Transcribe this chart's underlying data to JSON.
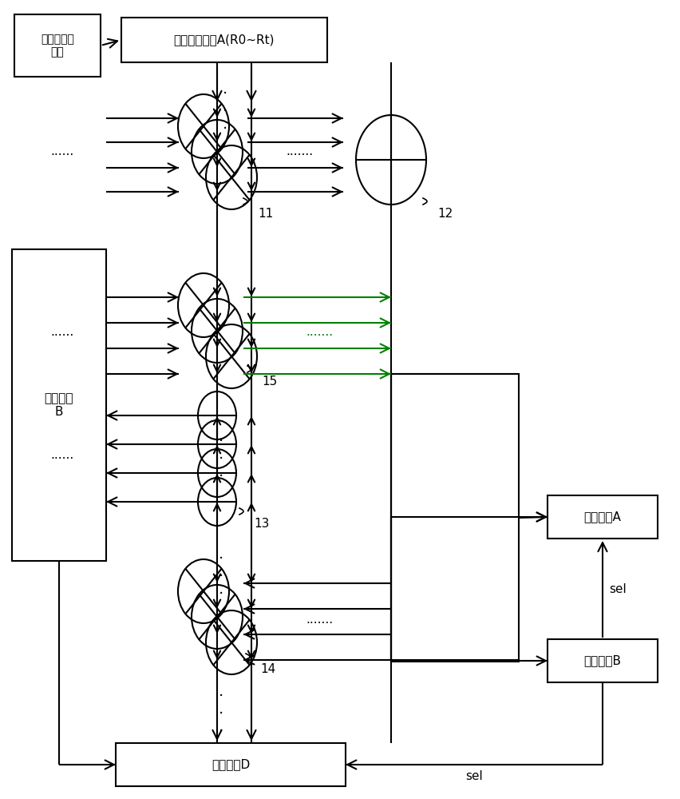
{
  "bg_color": "#ffffff",
  "lc": "#000000",
  "gc": "#008000",
  "fig_w": 8.52,
  "fig_h": 10.0,
  "companion_reg": "伴随式寄存\n器组",
  "shift_reg": "移位寄存器组A(R0~Rt)",
  "reg_B": "寄存器组\nB",
  "reg_D": "寄存器组D",
  "ctrl_A": "控制逻辑A",
  "ctrl_B": "控制逻辑B",
  "lbl11": "11",
  "lbl12": "12",
  "lbl13": "13",
  "lbl14": "14",
  "lbl15": "15",
  "sel": "sel"
}
